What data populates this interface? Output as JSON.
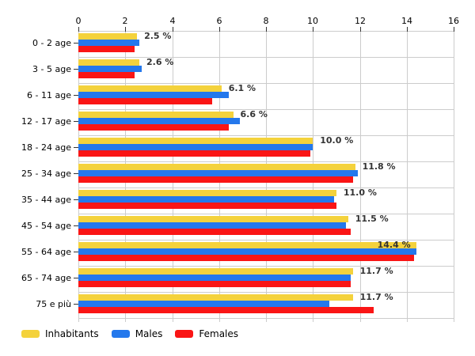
{
  "page": {
    "background": "#ffffff"
  },
  "chart_data": {
    "type": "bar",
    "orientation": "horizontal",
    "title": "",
    "categories": [
      "0 - 2 age",
      "3 - 5 age",
      "6 - 11 age",
      "12 - 17 age",
      "18 - 24 age",
      "25 - 34 age",
      "35 - 44 age",
      "45 - 54 age",
      "55 - 64 age",
      "65 - 74 age",
      "75 e più"
    ],
    "series": [
      {
        "name": "Inhabitants",
        "color": "#F4D23C",
        "values": [
          2.5,
          2.6,
          6.1,
          6.6,
          10.0,
          11.8,
          11.0,
          11.5,
          14.4,
          11.7,
          11.7
        ]
      },
      {
        "name": "Males",
        "color": "#2478EC",
        "values": [
          2.6,
          2.7,
          6.4,
          6.9,
          10.0,
          11.9,
          10.9,
          11.4,
          14.4,
          11.6,
          10.7
        ]
      },
      {
        "name": "Females",
        "color": "#FA1515",
        "values": [
          2.4,
          2.4,
          5.7,
          6.4,
          9.9,
          11.7,
          11.0,
          11.6,
          14.3,
          11.6,
          12.6
        ]
      }
    ],
    "bar_labels": [
      "2.5 %",
      "2.6 %",
      "6.1 %",
      "6.6 %",
      "10.0 %",
      "11.8 %",
      "11.0 %",
      "11.5 %",
      "14.4 %",
      "11.7 %",
      "11.7 %"
    ],
    "xlim": [
      0,
      16
    ],
    "x_ticks": [
      0,
      2,
      4,
      6,
      8,
      10,
      12,
      14,
      16
    ],
    "grid": true,
    "legend_position": "bottom-left",
    "colors": {
      "gridline": "#cccccc",
      "tick_text": "#000000",
      "bar_label_text": "#333333",
      "background": "#ffffff"
    }
  }
}
